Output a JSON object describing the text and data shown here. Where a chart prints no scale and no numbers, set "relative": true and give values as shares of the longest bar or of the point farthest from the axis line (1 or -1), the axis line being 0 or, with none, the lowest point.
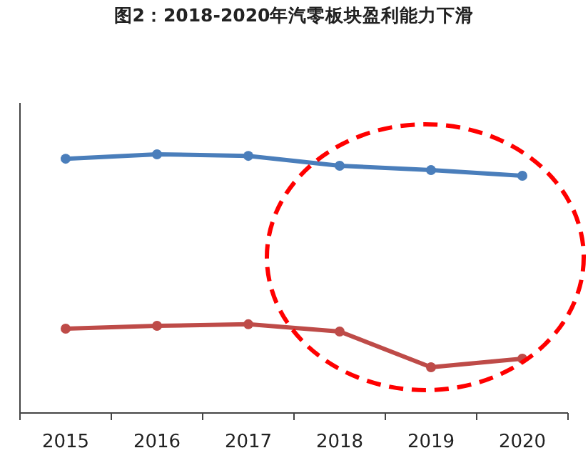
{
  "chart_data": {
    "type": "line",
    "title": "图2：2018-2020年汽零板块盈利能力下滑",
    "relative": true,
    "categories": [
      "2015",
      "2016",
      "2017",
      "2018",
      "2019",
      "2020"
    ],
    "series": [
      {
        "color": "#4a7ebb",
        "values": [
          0.983,
          1,
          0.994,
          0.956,
          0.939,
          0.917
        ]
      },
      {
        "color": "#be4b48",
        "values": [
          0.326,
          0.337,
          0.343,
          0.315,
          0.177,
          0.21
        ]
      }
    ],
    "marker": "circle",
    "line_style": "solid"
  }
}
